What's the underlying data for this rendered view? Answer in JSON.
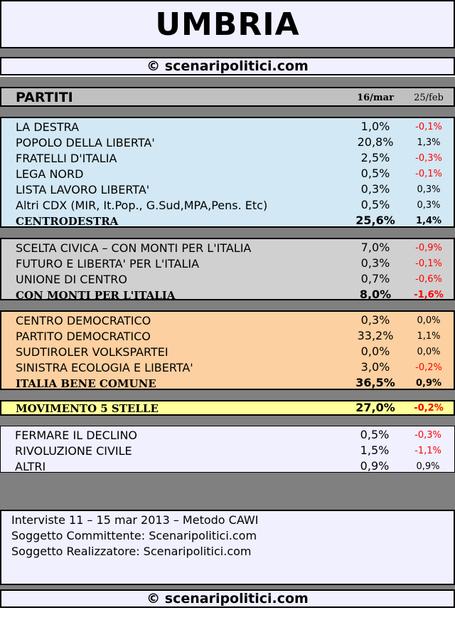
{
  "title": "UMBRIA",
  "copyright": "© scenaripolitici.com",
  "header": {
    "label": "PARTITI",
    "date1": "16/mar",
    "date2": "25/feb"
  },
  "centrodestra": [
    {
      "name": "LA DESTRA",
      "v1": "1,0%",
      "v2": "-0,1%"
    },
    {
      "name": "POPOLO DELLA LIBERTA'",
      "v1": "20,8%",
      "v2": "1,3%"
    },
    {
      "name": "FRATELLI D'ITALIA",
      "v1": "2,5%",
      "v2": "-0,3%"
    },
    {
      "name": "LEGA NORD",
      "v1": "0,5%",
      "v2": "-0,1%"
    },
    {
      "name": "LISTA LAVORO LIBERTA'",
      "v1": "0,3%",
      "v2": "0,3%"
    },
    {
      "name": "Altri CDX (MIR, It.Pop., G.Sud,MPA,Pens. Etc)",
      "v1": "0,5%",
      "v2": "0,3%"
    },
    {
      "name": "CENTRODESTRA",
      "v1": "25,6%",
      "v2": "1,4%",
      "total": true
    }
  ],
  "monti": [
    {
      "name": "SCELTA CIVICA – CON MONTI PER L'ITALIA",
      "v1": "7,0%",
      "v2": "-0,9%"
    },
    {
      "name": "FUTURO E LIBERTA' PER L'ITALIA",
      "v1": "0,3%",
      "v2": "-0,1%"
    },
    {
      "name": "UNIONE DI CENTRO",
      "v1": "0,7%",
      "v2": "-0,6%"
    },
    {
      "name": "CON MONTI PER L'ITALIA",
      "v1": "8,0%",
      "v2": "-1,6%",
      "total": true
    }
  ],
  "centrosinistra": [
    {
      "name": "CENTRO DEMOCRATICO",
      "v1": "0,3%",
      "v2": "0,0%"
    },
    {
      "name": "PARTITO DEMOCRATICO",
      "v1": "33,2%",
      "v2": "1,1%"
    },
    {
      "name": "SUDTIROLER VOLKSPARTEI",
      "v1": "0,0%",
      "v2": "0,0%"
    },
    {
      "name": "SINISTRA ECOLOGIA E LIBERTA'",
      "v1": "3,0%",
      "v2": "-0,2%"
    },
    {
      "name": "ITALIA BENE COMUNE",
      "v1": "36,5%",
      "v2": "0,9%",
      "total": true
    }
  ],
  "m5s": [
    {
      "name": "MOVIMENTO 5 STELLE",
      "v1": "27,0%",
      "v2": "-0,2%",
      "total": true
    }
  ],
  "altri": [
    {
      "name": "FERMARE IL DECLINO",
      "v1": "0,5%",
      "v2": "-0,3%"
    },
    {
      "name": "RIVOLUZIONE CIVILE",
      "v1": "1,5%",
      "v2": "-1,1%"
    },
    {
      "name": "ALTRI",
      "v1": "0,9%",
      "v2": "0,9%"
    }
  ],
  "footer": {
    "line1": "Interviste 11 – 15 mar 2013 – Metodo CAWI",
    "line2": "Soggetto Committente: Scenaripolitici.com",
    "line3": "Soggetto Realizzatore: Scenaripolitici.com"
  },
  "colors": {
    "centrodestra": "#d2e8f4",
    "monti": "#d0d0d0",
    "centrosinistra": "#fcd0a0",
    "m5s": "#ffff99",
    "altri": "#f0f0ff",
    "negative": "#ff0000"
  }
}
